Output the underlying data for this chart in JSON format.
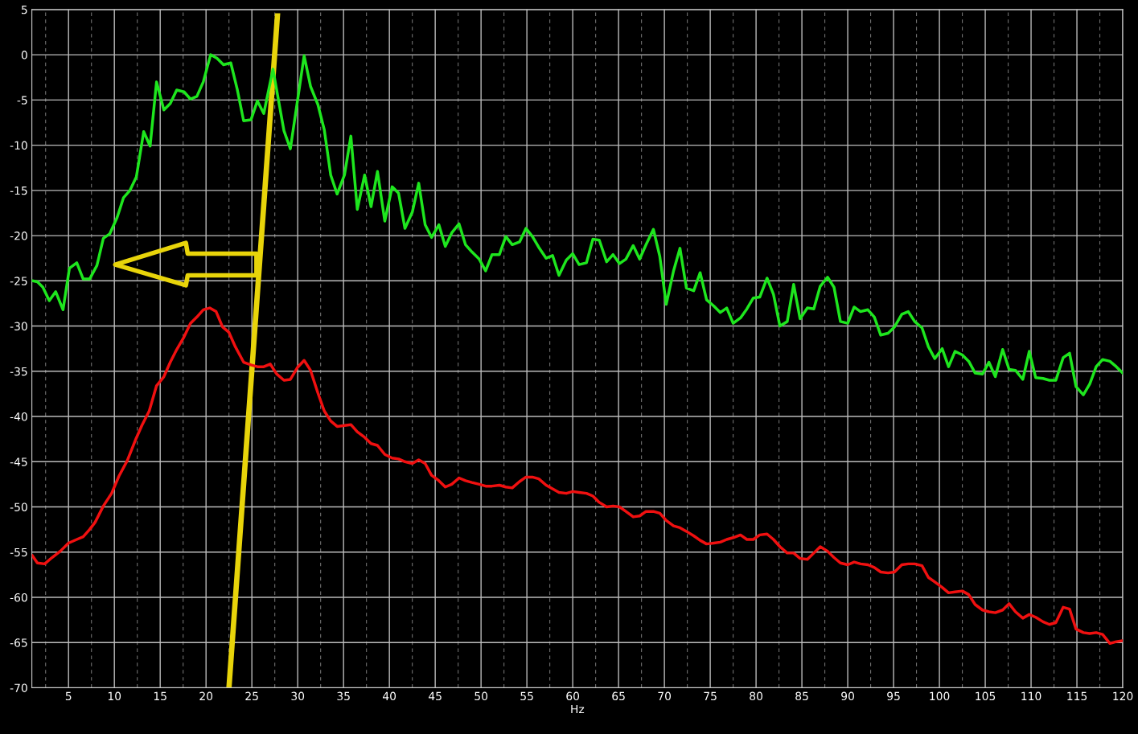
{
  "chart_data": {
    "type": "line",
    "xlabel": "Hz",
    "xlim": [
      1,
      120
    ],
    "ylim": [
      -70,
      5
    ],
    "xticks": [
      {
        "value": 2.5,
        "label": null
      },
      5,
      {
        "value": 7.5,
        "label": null
      },
      10,
      {
        "value": 12.5,
        "label": null
      },
      15,
      {
        "value": 17.5,
        "label": null
      },
      20,
      {
        "value": 22.5,
        "label": null
      },
      25,
      {
        "value": 27.5,
        "label": null
      },
      30,
      {
        "value": 32.5,
        "label": null
      },
      35,
      {
        "value": 37.5,
        "label": null
      },
      40,
      {
        "value": 42.5,
        "label": null
      },
      45,
      {
        "value": 47.5,
        "label": null
      },
      50,
      {
        "value": 52.5,
        "label": null
      },
      55,
      {
        "value": 57.5,
        "label": null
      },
      60,
      {
        "value": 62.5,
        "label": null
      },
      65,
      {
        "value": 67.5,
        "label": null
      },
      70,
      {
        "value": 72.5,
        "label": null
      },
      75,
      {
        "value": 77.5,
        "label": null
      },
      80,
      {
        "value": 82.5,
        "label": null
      },
      85,
      {
        "value": 87.5,
        "label": null
      },
      90,
      {
        "value": 92.5,
        "label": null
      },
      95,
      {
        "value": 97.5,
        "label": null
      },
      100,
      {
        "value": 102.5,
        "label": null
      },
      105,
      {
        "value": 107.5,
        "label": null
      },
      110,
      {
        "value": 112.5,
        "label": null
      },
      115,
      {
        "value": 117.5,
        "label": null
      },
      120
    ],
    "yticks": [
      5,
      0,
      -5,
      -10,
      -15,
      -20,
      -25,
      -30,
      -35,
      -40,
      -45,
      -50,
      -55,
      -60,
      -65,
      -70
    ],
    "grid": true,
    "line_style": "solid",
    "marker": "none",
    "series": [
      {
        "color": "#1ee61e",
        "x": [
          1.06,
          1.6,
          2.2,
          2.9,
          3.6,
          4.4,
          5.1,
          5.9,
          6.6,
          7.3,
          8.1,
          8.8,
          9.5,
          10.3,
          11.0,
          11.7,
          12.4,
          13.2,
          13.9,
          14.6,
          15.4,
          16.1,
          16.8,
          17.6,
          18.3,
          19.0,
          19.7,
          20.5,
          21.2,
          21.9,
          22.7,
          23.4,
          24.1,
          24.9,
          25.6,
          26.3,
          27.3,
          27.6,
          28.5,
          29.2,
          29.96,
          30.7,
          31.4,
          32.2,
          32.9,
          33.6,
          34.3,
          35.1,
          35.8,
          36.5,
          37.3,
          38.0,
          38.7,
          39.5,
          40.3,
          41.0,
          41.7,
          42.5,
          43.2,
          43.9,
          44.6,
          45.4,
          46.1,
          46.8,
          47.6,
          48.3,
          49.0,
          49.8,
          50.5,
          51.2,
          52.0,
          52.7,
          53.4,
          54.2,
          54.9,
          55.6,
          56.3,
          57.1,
          57.8,
          58.5,
          59.3,
          60.0,
          60.7,
          61.5,
          62.2,
          62.9,
          63.7,
          64.4,
          65.1,
          65.8,
          66.6,
          67.3,
          68.0,
          68.8,
          69.5,
          70.2,
          71.0,
          71.7,
          72.4,
          73.2,
          73.9,
          74.6,
          75.4,
          76.1,
          76.8,
          77.5,
          78.3,
          79.0,
          79.7,
          80.4,
          81.2,
          81.9,
          82.6,
          83.4,
          84.1,
          84.8,
          85.6,
          86.3,
          87.0,
          87.8,
          88.5,
          89.2,
          90.0,
          90.7,
          91.4,
          92.2,
          92.9,
          93.6,
          94.4,
          95.1,
          95.9,
          96.6,
          97.3,
          98.1,
          98.8,
          99.5,
          100.3,
          101.0,
          101.7,
          102.5,
          103.2,
          103.9,
          104.7,
          105.4,
          106.1,
          106.9,
          107.6,
          108.3,
          109.1,
          109.8,
          110.5,
          111.3,
          112.0,
          112.7,
          113.5,
          114.2,
          114.9,
          115.7,
          116.4,
          117.1,
          117.8,
          118.6,
          119.3,
          120.0
        ],
        "values": [
          -25,
          -25.1,
          -25.7,
          -27.2,
          -26.2,
          -28.2,
          -23.6,
          -23.0,
          -24.8,
          -24.8,
          -23.3,
          -20.3,
          -19.8,
          -18.0,
          -15.8,
          -15.0,
          -13.5,
          -8.5,
          -10.1,
          -3.0,
          -6.1,
          -5.4,
          -3.9,
          -4.1,
          -4.9,
          -4.6,
          -3.0,
          0,
          -0.4,
          -1.1,
          -0.9,
          -3.8,
          -7.3,
          -7.2,
          -5.1,
          -6.5,
          -1.6,
          -3.3,
          -8.4,
          -10.4,
          -5.2,
          -0.1,
          -3.5,
          -5.5,
          -8.3,
          -13.3,
          -15.4,
          -13.3,
          -9.0,
          -17.1,
          -13.3,
          -16.8,
          -12.9,
          -18.4,
          -14.6,
          -15.3,
          -19.2,
          -17.4,
          -14.2,
          -18.8,
          -20.2,
          -18.8,
          -21.2,
          -19.7,
          -18.7,
          -21.0,
          -21.8,
          -22.6,
          -23.9,
          -22.1,
          -22.1,
          -20.1,
          -21.0,
          -20.7,
          -19.2,
          -20.1,
          -21.3,
          -22.5,
          -22.2,
          -24.4,
          -22.7,
          -22.0,
          -23.2,
          -23.0,
          -20.4,
          -20.5,
          -22.9,
          -22.1,
          -23.1,
          -22.6,
          -21.1,
          -22.6,
          -21.0,
          -19.3,
          -22.3,
          -27.6,
          -23.9,
          -21.4,
          -25.8,
          -26.1,
          -24.1,
          -27.1,
          -27.8,
          -28.5,
          -28.0,
          -29.7,
          -29.1,
          -28.1,
          -26.9,
          -26.8,
          -24.7,
          -26.5,
          -30.0,
          -29.5,
          -25.4,
          -29.2,
          -28.0,
          -28.1,
          -25.6,
          -24.6,
          -25.7,
          -29.5,
          -29.7,
          -27.9,
          -28.4,
          -28.2,
          -29.0,
          -31.0,
          -30.8,
          -30.1,
          -28.7,
          -28.4,
          -29.5,
          -30.2,
          -32.3,
          -33.6,
          -32.5,
          -34.5,
          -32.8,
          -33.2,
          -33.9,
          -35.2,
          -35.3,
          -34.0,
          -35.6,
          -32.6,
          -34.8,
          -34.9,
          -35.9,
          -32.8,
          -35.7,
          -35.8,
          -36.0,
          -36.0,
          -33.5,
          -33.0,
          -36.7,
          -37.6,
          -36.4,
          -34.5,
          -33.7,
          -33.9,
          -34.5,
          -35.2
        ]
      },
      {
        "color": "#f01010",
        "x": [
          1.06,
          1.6,
          2.4,
          3.2,
          4.1,
          5.0,
          5.9,
          6.6,
          7.3,
          7.9,
          8.8,
          9.7,
          10.5,
          11.4,
          12.3,
          13.0,
          13.8,
          14.6,
          15.4,
          16.1,
          16.8,
          17.6,
          18.3,
          19.0,
          19.7,
          20.4,
          21.1,
          21.8,
          22.5,
          23.2,
          24.1,
          24.9,
          25.6,
          26.3,
          27.0,
          27.7,
          28.5,
          29.2,
          29.96,
          30.7,
          31.4,
          32.2,
          32.9,
          33.6,
          34.3,
          35.1,
          35.8,
          36.5,
          37.3,
          38.0,
          38.7,
          39.5,
          40.3,
          41.0,
          41.7,
          42.5,
          43.2,
          43.9,
          44.6,
          45.4,
          46.1,
          46.8,
          47.6,
          48.3,
          49.0,
          49.8,
          50.5,
          51.2,
          52.0,
          52.7,
          53.4,
          54.2,
          54.9,
          55.6,
          56.3,
          57.1,
          57.8,
          58.5,
          59.3,
          60.0,
          60.7,
          61.5,
          62.2,
          62.9,
          63.7,
          64.4,
          65.1,
          65.8,
          66.6,
          67.3,
          68.0,
          68.8,
          69.5,
          70.2,
          71.0,
          71.7,
          72.4,
          73.2,
          73.9,
          74.6,
          75.4,
          76.1,
          76.8,
          77.5,
          78.3,
          79.0,
          79.7,
          80.4,
          81.2,
          81.9,
          82.6,
          83.4,
          84.1,
          84.8,
          85.6,
          86.3,
          87.0,
          87.8,
          88.5,
          89.2,
          90.0,
          90.7,
          91.4,
          92.2,
          92.9,
          93.6,
          94.4,
          95.1,
          95.9,
          96.6,
          97.3,
          98.1,
          98.8,
          99.5,
          100.3,
          101.0,
          101.7,
          102.5,
          103.2,
          103.9,
          104.7,
          105.4,
          106.1,
          106.9,
          107.6,
          108.3,
          109.1,
          109.8,
          110.5,
          111.3,
          112.0,
          112.7,
          113.5,
          114.2,
          114.9,
          115.7,
          116.4,
          117.1,
          117.8,
          118.6,
          119.3,
          120.0
        ],
        "values": [
          -55.4,
          -56.2,
          -56.3,
          -55.6,
          -54.9,
          -54.0,
          -53.6,
          -53.3,
          -52.5,
          -51.7,
          -49.9,
          -48.5,
          -46.6,
          -44.9,
          -42.6,
          -41.0,
          -39.4,
          -36.6,
          -35.6,
          -34.0,
          -32.6,
          -31.2,
          -29.7,
          -29.0,
          -28.2,
          -28.0,
          -28.4,
          -30.1,
          -30.7,
          -32.3,
          -34.0,
          -34.3,
          -34.5,
          -34.5,
          -34.2,
          -35.3,
          -36.0,
          -35.9,
          -34.6,
          -33.8,
          -34.9,
          -37.4,
          -39.4,
          -40.5,
          -41.1,
          -41.0,
          -40.9,
          -41.7,
          -42.3,
          -43.0,
          -43.2,
          -44.2,
          -44.6,
          -44.7,
          -45.0,
          -45.2,
          -44.8,
          -45.2,
          -46.5,
          -47.1,
          -47.8,
          -47.5,
          -46.8,
          -47.1,
          -47.3,
          -47.5,
          -47.7,
          -47.7,
          -47.6,
          -47.8,
          -47.9,
          -47.2,
          -46.7,
          -46.7,
          -46.9,
          -47.6,
          -48.0,
          -48.4,
          -48.5,
          -48.3,
          -48.4,
          -48.5,
          -48.8,
          -49.5,
          -50.0,
          -49.9,
          -50.0,
          -50.5,
          -51.1,
          -51.0,
          -50.5,
          -50.5,
          -50.7,
          -51.5,
          -52.1,
          -52.3,
          -52.7,
          -53.2,
          -53.7,
          -54.1,
          -54.0,
          -53.9,
          -53.6,
          -53.4,
          -53.1,
          -53.6,
          -53.6,
          -53.1,
          -53.0,
          -53.6,
          -54.4,
          -55.1,
          -55.1,
          -55.7,
          -55.8,
          -55.1,
          -54.4,
          -54.9,
          -55.6,
          -56.2,
          -56.4,
          -56.1,
          -56.3,
          -56.4,
          -56.7,
          -57.2,
          -57.3,
          -57.2,
          -56.4,
          -56.3,
          -56.3,
          -56.5,
          -57.8,
          -58.3,
          -58.9,
          -59.5,
          -59.4,
          -59.3,
          -59.7,
          -60.8,
          -61.4,
          -61.6,
          -61.7,
          -61.4,
          -60.7,
          -61.6,
          -62.3,
          -61.9,
          -62.2,
          -62.7,
          -63.0,
          -62.8,
          -61.1,
          -61.3,
          -63.5,
          -63.9,
          -64.0,
          -63.9,
          -64.1,
          -65.1,
          -64.9,
          -64.8
        ]
      }
    ]
  }
}
